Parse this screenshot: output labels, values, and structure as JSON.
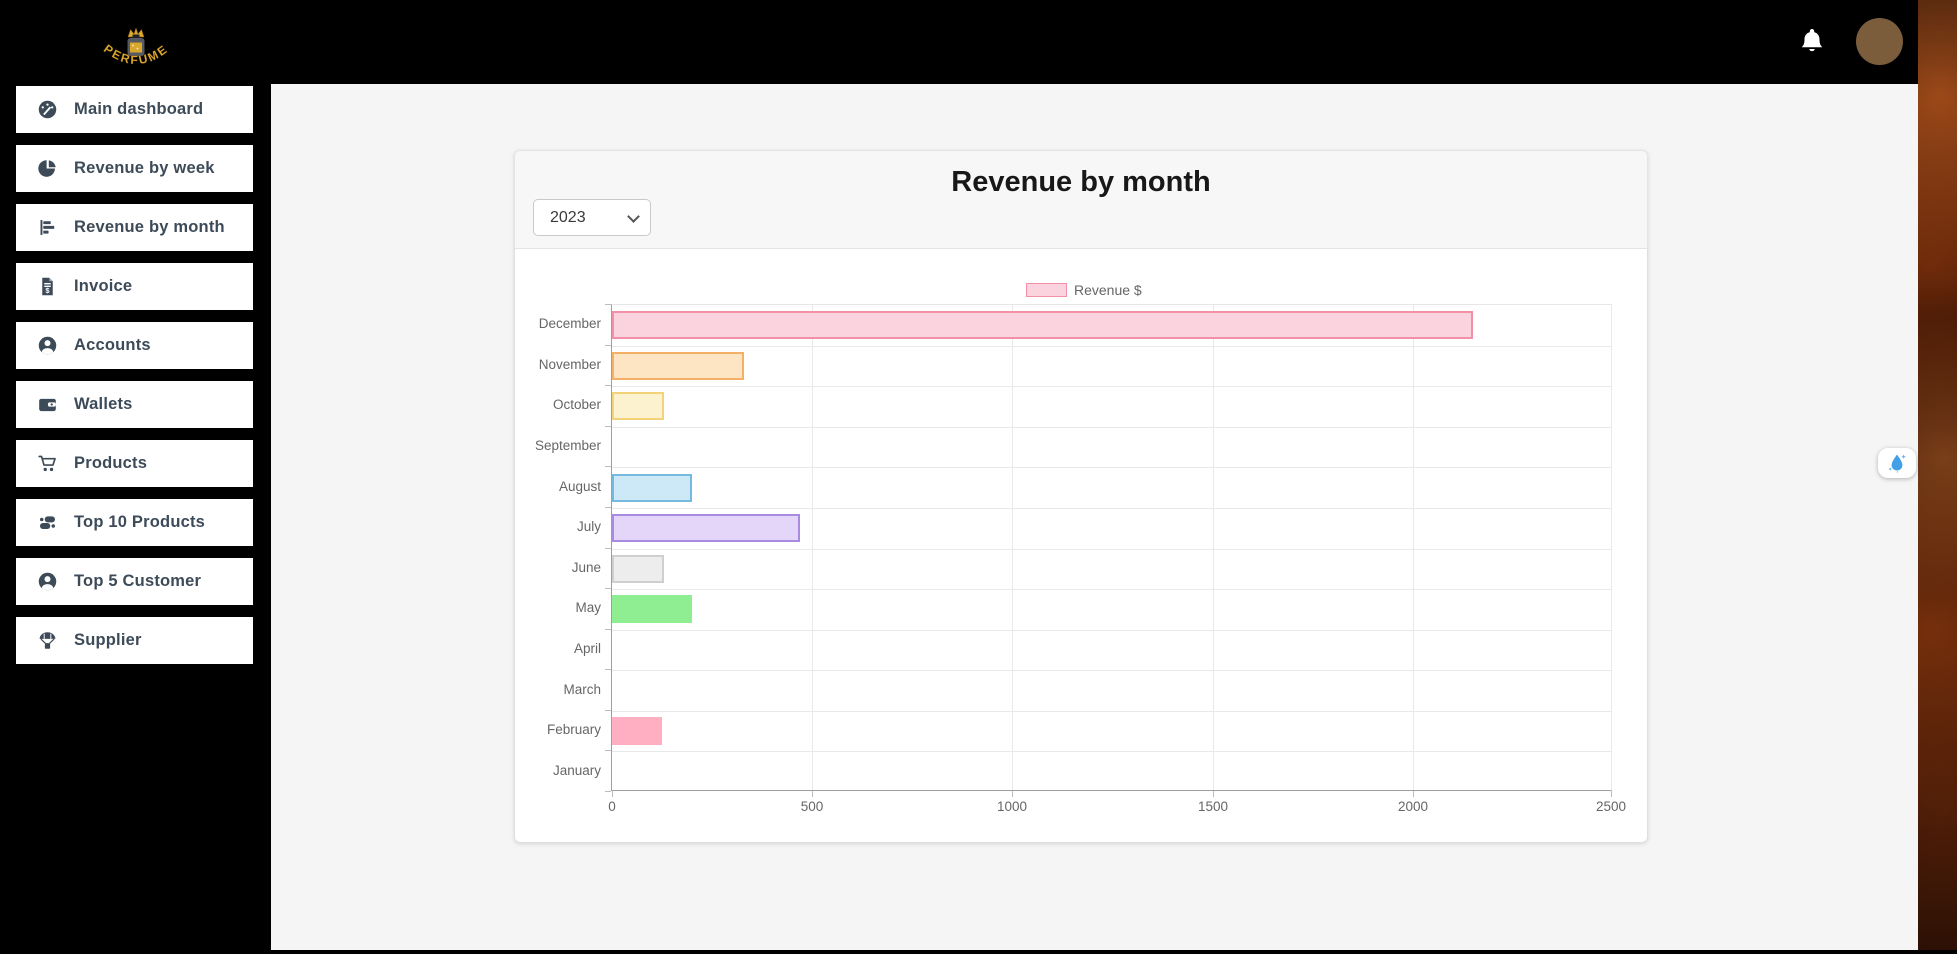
{
  "topbar": {
    "logo_text": "PERFUME",
    "logo_icon": "perfume-bottle-crown-logo",
    "bell_icon": "notification-bell",
    "avatar_icon": "cat-santa-avatar"
  },
  "sidebar": {
    "items": [
      {
        "label": "Main dashboard",
        "icon": "dashboard-gauge-icon"
      },
      {
        "label": "Revenue by week",
        "icon": "pie-chart-icon"
      },
      {
        "label": "Revenue by month",
        "icon": "horizontal-bar-chart-icon"
      },
      {
        "label": "Invoice",
        "icon": "invoice-dollar-icon"
      },
      {
        "label": "Accounts",
        "icon": "user-circle-icon"
      },
      {
        "label": "Wallets",
        "icon": "wallet-icon"
      },
      {
        "label": "Products",
        "icon": "shopping-cart-icon"
      },
      {
        "label": "Top 10 Products",
        "icon": "shoe-prints-icon"
      },
      {
        "label": "Top 5 Customer",
        "icon": "user-circle-icon"
      },
      {
        "label": "Supplier",
        "icon": "parachute-box-icon"
      }
    ]
  },
  "card": {
    "title": "Revenue by month",
    "year_select": {
      "value": "2023",
      "options": [
        "2023"
      ]
    }
  },
  "chart_data": {
    "type": "bar",
    "orientation": "horizontal",
    "title": "Revenue by month",
    "legend": [
      {
        "label": "Revenue $",
        "fill": "#fbd3de",
        "border": "#f48fa8"
      }
    ],
    "legend_position": "top",
    "grid": true,
    "categories": [
      "December",
      "November",
      "October",
      "September",
      "August",
      "July",
      "June",
      "May",
      "April",
      "March",
      "February",
      "January"
    ],
    "values": [
      2150,
      330,
      130,
      0,
      200,
      470,
      130,
      200,
      0,
      0,
      125,
      0
    ],
    "bar_colors": [
      {
        "fill": "#fbd3de",
        "border": "#f48fa8"
      },
      {
        "fill": "#fde5c4",
        "border": "#f5b065"
      },
      {
        "fill": "#fdf2cf",
        "border": "#f2d378"
      },
      {
        "fill": "none",
        "border": "none"
      },
      {
        "fill": "#cde9f8",
        "border": "#75bade"
      },
      {
        "fill": "#e3d6f9",
        "border": "#a98ae2"
      },
      {
        "fill": "#ededed",
        "border": "#cfcfcf"
      },
      {
        "fill": "#8fee92",
        "border": "#8fee92"
      },
      {
        "fill": "none",
        "border": "none"
      },
      {
        "fill": "none",
        "border": "none"
      },
      {
        "fill": "#ffafc1",
        "border": "#ffafc1"
      },
      {
        "fill": "none",
        "border": "none"
      }
    ],
    "xlabel": "",
    "ylabel": "",
    "xlim": [
      0,
      2500
    ],
    "x_ticks": [
      0,
      500,
      1000,
      1500,
      2000,
      2500
    ]
  },
  "floating_widget": {
    "icon": "water-drop-icon"
  },
  "colors": {
    "topbar_bg": "#000000",
    "sidebar_bg": "#000000",
    "content_bg": "#f5f5f6",
    "card_header_bg": "#f7f7f8",
    "sidebar_text": "#3d4b59",
    "axis_text": "#666666",
    "logo_gold": "#e3ac2f"
  }
}
